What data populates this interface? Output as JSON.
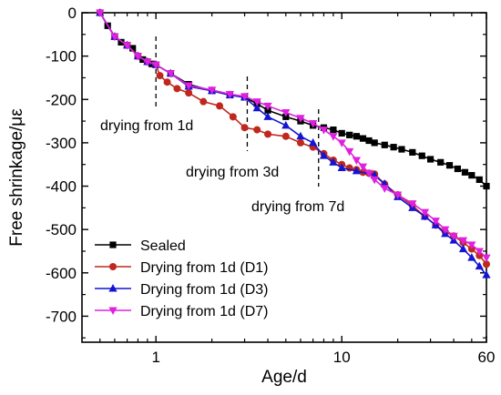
{
  "chart_data": {
    "type": "line",
    "xlabel": "Age/d",
    "ylabel": "Free shrinkage/με",
    "xscale": "log",
    "xlim": [
      0.4,
      60
    ],
    "ylim": [
      -760,
      0
    ],
    "x_ticks": [
      1,
      10,
      60
    ],
    "x_tick_labels": [
      "1",
      "10",
      "60"
    ],
    "y_ticks": [
      0,
      -100,
      -200,
      -300,
      -400,
      -500,
      -600,
      -700
    ],
    "y_tick_labels": [
      "0",
      "-100",
      "-200",
      "-300",
      "-400",
      "-500",
      "-600",
      "-700"
    ],
    "legend_position": "bottom-left",
    "grid": false,
    "annotations": [
      {
        "text": "drying from 1d",
        "x": 1
      },
      {
        "text": "drying from 3d",
        "x": 3.1
      },
      {
        "text": "drying from 7d",
        "x": 7.5
      }
    ],
    "series": [
      {
        "name": "Sealed",
        "color": "#000000",
        "marker": "square",
        "points": [
          [
            0.5,
            0
          ],
          [
            0.55,
            -30
          ],
          [
            0.6,
            -55
          ],
          [
            0.65,
            -68
          ],
          [
            0.7,
            -75
          ],
          [
            0.75,
            -82
          ],
          [
            0.8,
            -100
          ],
          [
            0.85,
            -108
          ],
          [
            0.9,
            -113
          ],
          [
            0.95,
            -118
          ],
          [
            1,
            -120
          ],
          [
            1.2,
            -140
          ],
          [
            1.5,
            -165
          ],
          [
            2,
            -180
          ],
          [
            2.5,
            -190
          ],
          [
            3,
            -195
          ],
          [
            3.5,
            -210
          ],
          [
            4,
            -225
          ],
          [
            5,
            -240
          ],
          [
            6,
            -250
          ],
          [
            7,
            -260
          ],
          [
            8,
            -265
          ],
          [
            9,
            -270
          ],
          [
            10,
            -278
          ],
          [
            11,
            -282
          ],
          [
            12,
            -285
          ],
          [
            13,
            -290
          ],
          [
            14,
            -295
          ],
          [
            15,
            -300
          ],
          [
            17,
            -305
          ],
          [
            19,
            -310
          ],
          [
            21,
            -315
          ],
          [
            24,
            -322
          ],
          [
            27,
            -330
          ],
          [
            30,
            -338
          ],
          [
            34,
            -345
          ],
          [
            38,
            -352
          ],
          [
            42,
            -360
          ],
          [
            46,
            -368
          ],
          [
            50,
            -375
          ],
          [
            55,
            -385
          ],
          [
            60,
            -400
          ]
        ]
      },
      {
        "name": "Drying from 1d (D1)",
        "color": "#c0281d",
        "marker": "circle",
        "points": [
          [
            0.5,
            0
          ],
          [
            0.6,
            -55
          ],
          [
            0.7,
            -75
          ],
          [
            0.8,
            -100
          ],
          [
            0.9,
            -113
          ],
          [
            1,
            -120
          ],
          [
            1.05,
            -145
          ],
          [
            1.15,
            -160
          ],
          [
            1.3,
            -175
          ],
          [
            1.5,
            -185
          ],
          [
            1.8,
            -205
          ],
          [
            2.2,
            -215
          ],
          [
            2.6,
            -240
          ],
          [
            3,
            -265
          ],
          [
            3.5,
            -270
          ],
          [
            4,
            -280
          ],
          [
            5,
            -285
          ],
          [
            6,
            -300
          ],
          [
            7,
            -310
          ],
          [
            8,
            -325
          ],
          [
            9,
            -340
          ],
          [
            10,
            -350
          ],
          [
            11,
            -358
          ],
          [
            12,
            -362
          ],
          [
            13,
            -368
          ],
          [
            14,
            -370
          ],
          [
            15,
            -372
          ],
          [
            17,
            -395
          ],
          [
            20,
            -420
          ],
          [
            24,
            -445
          ],
          [
            28,
            -470
          ],
          [
            32,
            -490
          ],
          [
            36,
            -505
          ],
          [
            40,
            -515
          ],
          [
            45,
            -530
          ],
          [
            50,
            -545
          ],
          [
            55,
            -560
          ],
          [
            60,
            -580
          ]
        ]
      },
      {
        "name": "Drying from 1d (D3)",
        "color": "#1414d2",
        "marker": "triangle-up",
        "points": [
          [
            0.5,
            0
          ],
          [
            0.6,
            -55
          ],
          [
            0.7,
            -75
          ],
          [
            0.8,
            -100
          ],
          [
            0.9,
            -113
          ],
          [
            1,
            -120
          ],
          [
            1.2,
            -140
          ],
          [
            1.5,
            -170
          ],
          [
            2,
            -180
          ],
          [
            2.5,
            -190
          ],
          [
            3,
            -195
          ],
          [
            3.5,
            -220
          ],
          [
            4,
            -240
          ],
          [
            5,
            -260
          ],
          [
            6,
            -285
          ],
          [
            7,
            -300
          ],
          [
            8,
            -330
          ],
          [
            9,
            -345
          ],
          [
            10,
            -358
          ],
          [
            12,
            -365
          ],
          [
            15,
            -375
          ],
          [
            17,
            -395
          ],
          [
            20,
            -425
          ],
          [
            24,
            -450
          ],
          [
            28,
            -470
          ],
          [
            32,
            -490
          ],
          [
            36,
            -510
          ],
          [
            40,
            -525
          ],
          [
            45,
            -545
          ],
          [
            50,
            -565
          ],
          [
            55,
            -585
          ],
          [
            60,
            -605
          ]
        ]
      },
      {
        "name": "Drying from 1d (D7)",
        "color": "#e020e0",
        "marker": "triangle-down",
        "points": [
          [
            0.5,
            0
          ],
          [
            0.6,
            -55
          ],
          [
            0.7,
            -75
          ],
          [
            0.8,
            -100
          ],
          [
            0.9,
            -113
          ],
          [
            1,
            -120
          ],
          [
            1.2,
            -140
          ],
          [
            1.5,
            -168
          ],
          [
            2,
            -178
          ],
          [
            2.5,
            -188
          ],
          [
            3,
            -193
          ],
          [
            3.5,
            -205
          ],
          [
            4,
            -215
          ],
          [
            5,
            -230
          ],
          [
            6,
            -243
          ],
          [
            7,
            -255
          ],
          [
            8,
            -270
          ],
          [
            9,
            -285
          ],
          [
            10,
            -300
          ],
          [
            11,
            -320
          ],
          [
            12,
            -340
          ],
          [
            13,
            -355
          ],
          [
            14,
            -370
          ],
          [
            15,
            -385
          ],
          [
            17,
            -405
          ],
          [
            20,
            -420
          ],
          [
            24,
            -440
          ],
          [
            28,
            -460
          ],
          [
            32,
            -480
          ],
          [
            36,
            -500
          ],
          [
            40,
            -515
          ],
          [
            45,
            -525
          ],
          [
            50,
            -535
          ],
          [
            55,
            -550
          ],
          [
            60,
            -565
          ]
        ]
      }
    ]
  }
}
